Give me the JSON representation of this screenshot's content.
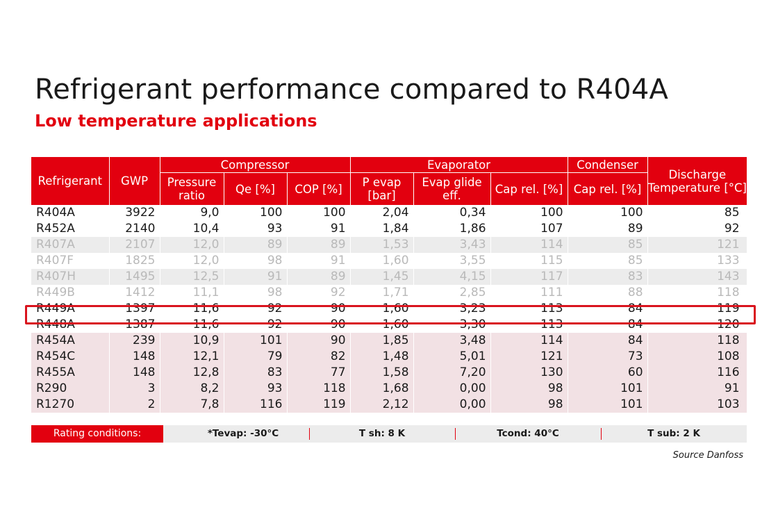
{
  "title": "Refrigerant performance compared to R404A",
  "subtitle": "Low temperature applications",
  "accent_color": "#e2000f",
  "table": {
    "header_top": {
      "refrigerant": "Refrigerant",
      "gwp": "GWP",
      "compressor": "Compressor",
      "evaporator": "Evaporator",
      "condenser": "Condenser",
      "discharge": "Discharge Temperature [°C]"
    },
    "header_sub": {
      "pressure_ratio": "Pressure ratio",
      "qe": "Qe [%]",
      "cop": "COP [%]",
      "p_evap": "P evap [bar]",
      "evap_glide": "Evap glide eff.",
      "evap_cap_rel": "Cap rel. [%]",
      "cond_cap_rel": "Cap rel. [%]"
    },
    "rows": [
      {
        "name": "R404A",
        "gwp": "3922",
        "pressure_ratio": "9,0",
        "qe": "100",
        "cop": "100",
        "p_evap": "2,04",
        "glide": "0,34",
        "evap_cap": "100",
        "cond_cap": "100",
        "discharge": "85"
      },
      {
        "name": "R452A",
        "gwp": "2140",
        "pressure_ratio": "10,4",
        "qe": "93",
        "cop": "91",
        "p_evap": "1,84",
        "glide": "1,86",
        "evap_cap": "107",
        "cond_cap": "89",
        "discharge": "92"
      },
      {
        "name": "R407A",
        "gwp": "2107",
        "pressure_ratio": "12,0",
        "qe": "89",
        "cop": "89",
        "p_evap": "1,53",
        "glide": "3,43",
        "evap_cap": "114",
        "cond_cap": "85",
        "discharge": "121"
      },
      {
        "name": "R407F",
        "gwp": "1825",
        "pressure_ratio": "12,0",
        "qe": "98",
        "cop": "91",
        "p_evap": "1,60",
        "glide": "3,55",
        "evap_cap": "115",
        "cond_cap": "85",
        "discharge": "133"
      },
      {
        "name": "R407H",
        "gwp": "1495",
        "pressure_ratio": "12,5",
        "qe": "91",
        "cop": "89",
        "p_evap": "1,45",
        "glide": "4,15",
        "evap_cap": "117",
        "cond_cap": "83",
        "discharge": "143"
      },
      {
        "name": "R449B",
        "gwp": "1412",
        "pressure_ratio": "11,1",
        "qe": "98",
        "cop": "92",
        "p_evap": "1,71",
        "glide": "2,85",
        "evap_cap": "111",
        "cond_cap": "88",
        "discharge": "118"
      },
      {
        "name": "R449A",
        "gwp": "1397",
        "pressure_ratio": "11,6",
        "qe": "92",
        "cop": "90",
        "p_evap": "1,60",
        "glide": "3,23",
        "evap_cap": "113",
        "cond_cap": "84",
        "discharge": "119"
      },
      {
        "name": "R448A",
        "gwp": "1387",
        "pressure_ratio": "11,6",
        "qe": "92",
        "cop": "90",
        "p_evap": "1,60",
        "glide": "3,30",
        "evap_cap": "113",
        "cond_cap": "84",
        "discharge": "120"
      },
      {
        "name": "R454A",
        "gwp": "239",
        "pressure_ratio": "10,9",
        "qe": "101",
        "cop": "90",
        "p_evap": "1,85",
        "glide": "3,48",
        "evap_cap": "114",
        "cond_cap": "84",
        "discharge": "118"
      },
      {
        "name": "R454C",
        "gwp": "148",
        "pressure_ratio": "12,1",
        "qe": "79",
        "cop": "82",
        "p_evap": "1,48",
        "glide": "5,01",
        "evap_cap": "121",
        "cond_cap": "73",
        "discharge": "108"
      },
      {
        "name": "R455A",
        "gwp": "148",
        "pressure_ratio": "12,8",
        "qe": "83",
        "cop": "77",
        "p_evap": "1,58",
        "glide": "7,20",
        "evap_cap": "130",
        "cond_cap": "60",
        "discharge": "116"
      },
      {
        "name": "R290",
        "gwp": "3",
        "pressure_ratio": "8,2",
        "qe": "93",
        "cop": "118",
        "p_evap": "1,68",
        "glide": "0,00",
        "evap_cap": "98",
        "cond_cap": "101",
        "discharge": "91"
      },
      {
        "name": "R1270",
        "gwp": "2",
        "pressure_ratio": "7,8",
        "qe": "116",
        "cop": "119",
        "p_evap": "2,12",
        "glide": "0,00",
        "evap_cap": "98",
        "cond_cap": "101",
        "discharge": "103"
      }
    ]
  },
  "footer": {
    "rating_label": "Rating conditions:",
    "tevap": "*Tevap: -30°C",
    "tsh": "T sh: 8 K",
    "tcond": "Tcond: 40°C",
    "tsub": "T sub: 2 K"
  },
  "source": "Source Danfoss"
}
